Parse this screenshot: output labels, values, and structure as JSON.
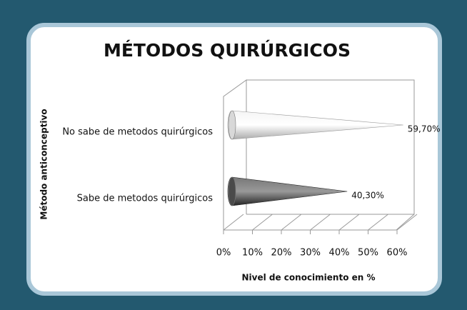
{
  "chart_data": {
    "type": "cone-bar",
    "title": "MÉTODOS QUIRÚRGICOS",
    "x_label": "Nivel de conocimiento en %",
    "y_label": "Método anticonceptivo",
    "categories": [
      "No sabe de metodos quirúrgicos",
      "Sabe de metodos quirúrgicos"
    ],
    "values": [
      59.7,
      40.3
    ],
    "value_labels": [
      "59,70%",
      "40,30%"
    ],
    "colors": [
      "#d8d8d8",
      "#4a4a4a"
    ],
    "xlim": [
      0,
      60
    ],
    "xticks": [
      {
        "value": 0,
        "label": "0%"
      },
      {
        "value": 10,
        "label": "10%"
      },
      {
        "value": 20,
        "label": "20%"
      },
      {
        "value": 30,
        "label": "30%"
      },
      {
        "value": 40,
        "label": "40%"
      },
      {
        "value": 50,
        "label": "50%"
      },
      {
        "value": 60,
        "label": "60%"
      }
    ],
    "grid": true
  }
}
